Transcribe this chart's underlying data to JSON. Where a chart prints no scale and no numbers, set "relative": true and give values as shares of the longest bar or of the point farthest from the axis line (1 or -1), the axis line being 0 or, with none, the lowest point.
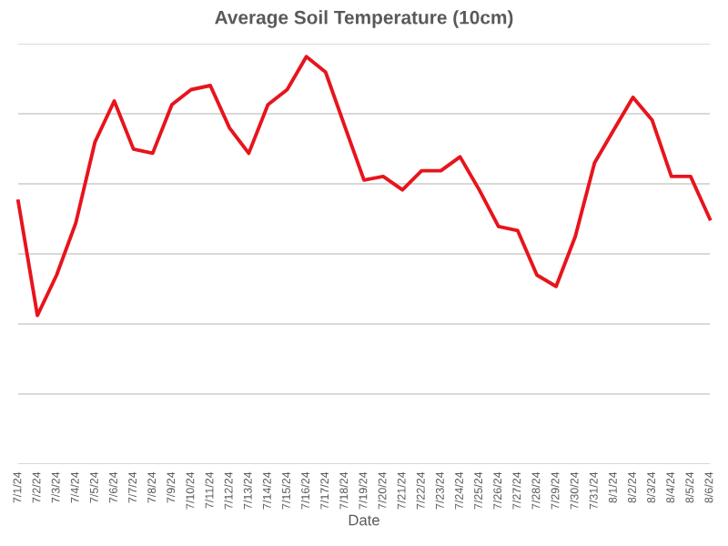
{
  "chart_data": {
    "type": "line",
    "title": "Average Soil Temperature (10cm)",
    "xlabel": "Date",
    "categories": [
      "7/1/24",
      "7/2/24",
      "7/3/24",
      "7/4/24",
      "7/5/24",
      "7/6/24",
      "7/7/24",
      "7/8/24",
      "7/9/24",
      "7/10/24",
      "7/11/24",
      "7/12/24",
      "7/13/24",
      "7/14/24",
      "7/15/24",
      "7/16/24",
      "7/17/24",
      "7/18/24",
      "7/19/24",
      "7/20/24",
      "7/21/24",
      "7/22/24",
      "7/23/24",
      "7/24/24",
      "7/25/24",
      "7/26/24",
      "7/27/24",
      "7/28/24",
      "7/29/24",
      "7/30/24",
      "7/31/24",
      "8/1/24",
      "8/2/24",
      "8/3/24",
      "8/4/24",
      "8/5/24",
      "8/6/24"
    ],
    "series": [
      {
        "color": "#e8141c",
        "values": [
          0.645,
          0.365,
          0.464,
          0.592,
          0.791,
          0.891,
          0.773,
          0.763,
          0.882,
          0.919,
          0.929,
          0.825,
          0.763,
          0.882,
          0.919,
          1,
          0.962,
          0.829,
          0.697,
          0.706,
          0.673,
          0.72,
          0.72,
          0.754,
          0.673,
          0.583,
          0.573,
          0.464,
          0.436,
          0.559,
          0.739,
          0.82,
          0.9,
          0.844,
          0.706,
          0.706,
          0.602
        ]
      }
    ],
    "relative": true,
    "grid": "y",
    "legend": false,
    "marker": "none",
    "line_style": "solid"
  }
}
